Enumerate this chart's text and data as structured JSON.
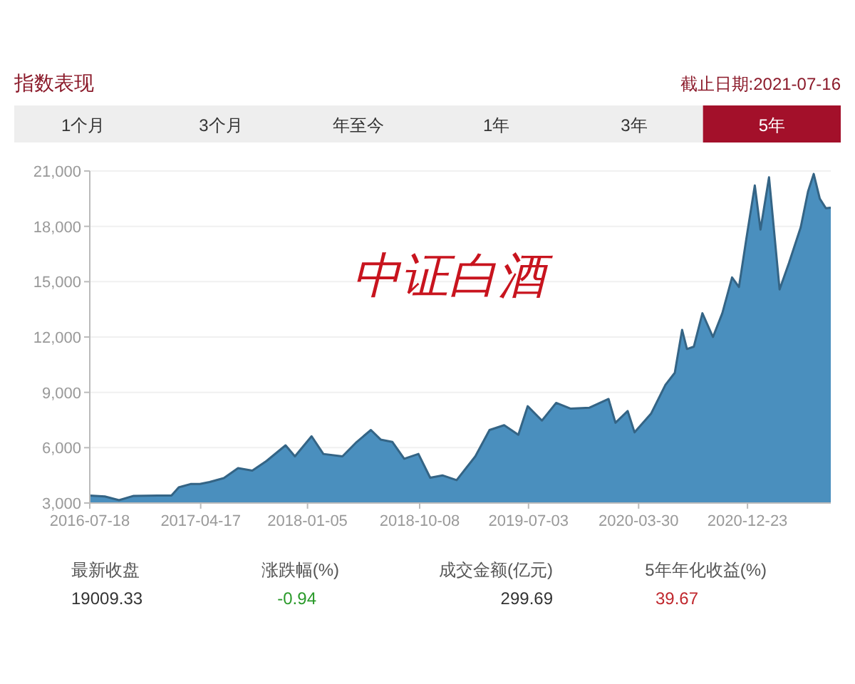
{
  "chart_data": {
    "type": "area",
    "title": "指数表现",
    "subtitle": "截止日期:2021-07-16",
    "annotations": [
      "1个月",
      "3个月",
      "年至今",
      "1年",
      "3年",
      "5年",
      "中证白酒",
      "最新收盘",
      "19009.33",
      "涨跌幅(%)",
      "-0.94",
      "成交金额(亿元)",
      "299.69",
      "5年年化收益(%)",
      "39.67"
    ],
    "x": [
      "2016-07-18",
      "2016-08-24",
      "2016-09-28",
      "2016-11-03",
      "2017-01-01",
      "2017-02-04",
      "2017-02-22",
      "2017-03-23",
      "2017-04-15",
      "2017-05-09",
      "2017-06-13",
      "2017-07-18",
      "2017-08-22",
      "2017-09-26",
      "2017-11-12",
      "2017-12-05",
      "2018-01-15",
      "2018-02-13",
      "2018-04-01",
      "2018-05-06",
      "2018-06-10",
      "2018-07-04",
      "2018-08-02",
      "2018-08-31",
      "2018-10-05",
      "2018-11-03",
      "2018-12-03",
      "2019-01-07",
      "2019-02-22",
      "2019-03-29",
      "2019-05-04",
      "2019-06-08",
      "2019-07-01",
      "2019-08-05",
      "2019-09-09",
      "2019-10-14",
      "2019-11-30",
      "2020-01-16",
      "2020-02-02",
      "2020-03-03",
      "2020-03-20",
      "2020-04-30",
      "2020-06-04",
      "2020-06-27",
      "2020-07-15",
      "2020-07-27",
      "2020-08-13",
      "2020-09-03",
      "2020-09-29",
      "2020-10-22",
      "2020-11-15",
      "2020-12-02",
      "2020-12-20",
      "2021-01-10",
      "2021-01-24",
      "2021-02-14",
      "2021-03-12",
      "2021-04-04",
      "2021-05-03",
      "2021-05-21",
      "2021-06-04",
      "2021-06-19",
      "2021-07-04",
      "2021-07-16"
    ],
    "series": [
      {
        "color": "#4a8fbe",
        "values": [
          3410,
          3360,
          3155,
          3390,
          3410,
          3410,
          3850,
          4030,
          4030,
          4140,
          4350,
          4890,
          4760,
          5280,
          6130,
          5530,
          6620,
          5660,
          5530,
          6310,
          6960,
          6440,
          6310,
          5400,
          5660,
          4370,
          4500,
          4240,
          5530,
          6960,
          7220,
          6700,
          8250,
          7470,
          8430,
          8120,
          8170,
          8640,
          7350,
          7990,
          6830,
          7860,
          9410,
          10060,
          12390,
          11350,
          11480,
          13290,
          12000,
          13290,
          15230,
          14710,
          17300,
          20220,
          17820,
          20660,
          14580,
          16010,
          17950,
          19890,
          20840,
          19500,
          18980,
          19009
        ]
      }
    ],
    "xlim": [
      "2016-07-18",
      "2021-07-16"
    ],
    "xticks": [
      {
        "value": "2016-07-18",
        "label": "2016-07-18"
      },
      {
        "value": "2017-04-17",
        "label": "2017-04-17"
      },
      {
        "value": "2018-01-05",
        "label": "2018-01-05"
      },
      {
        "value": "2018-10-08",
        "label": "2018-10-08"
      },
      {
        "value": "2019-07-03",
        "label": "2019-07-03"
      },
      {
        "value": "2020-03-30",
        "label": "2020-03-30"
      },
      {
        "value": "2020-12-23",
        "label": "2020-12-23"
      }
    ],
    "ylim": [
      3000,
      21000
    ],
    "yticks": [
      {
        "value": 3000,
        "label": "3,000"
      },
      {
        "value": 6000,
        "label": "6,000"
      },
      {
        "value": 9000,
        "label": "9,000"
      },
      {
        "value": 12000,
        "label": "12,000"
      },
      {
        "value": 15000,
        "label": "15,000"
      },
      {
        "value": 18000,
        "label": "18,000"
      },
      {
        "value": 21000,
        "label": "21,000"
      }
    ],
    "grid": "y"
  }
}
